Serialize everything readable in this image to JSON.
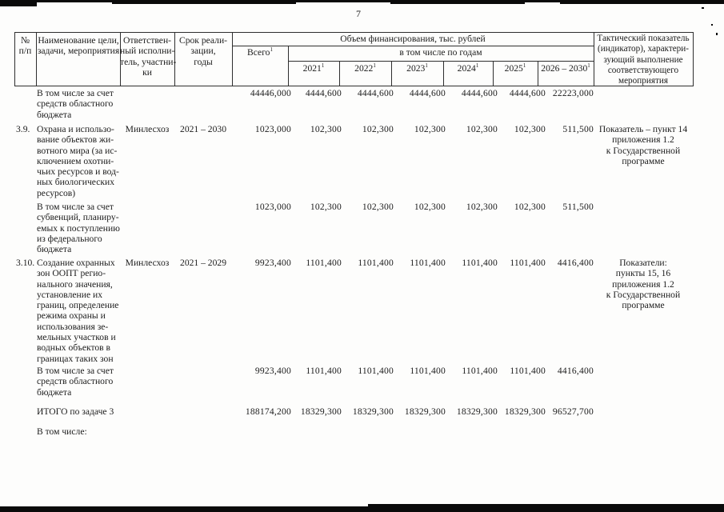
{
  "page_number": "7",
  "table": {
    "header": {
      "num": "№\nп/п",
      "name": "Наименование цели,\nзадачи, мероприятия",
      "executor": "Ответствен-\nный исполни-\nтель, участни-\nки",
      "term": "Срок реали-\nзации,\nгоды",
      "finance_title": "Объем финансирования, тыс. рублей",
      "total_label": "Всего",
      "footnote_mark": "1",
      "by_years_label": "в том числе по годам",
      "year_columns": [
        "2021",
        "2022",
        "2023",
        "2024",
        "2025",
        "2026 – 2030"
      ],
      "indicator": "Тактический показатель\n(индикатор), характери-\nзующий выполнение\nсоответствующего\nмероприятия"
    },
    "rows": [
      {
        "num": "",
        "name": "В том числе за счет\nсредств областного\nбюджета",
        "executor": "",
        "term": "",
        "values": [
          "44446,000",
          "4444,600",
          "4444,600",
          "4444,600",
          "4444,600",
          "4444,600",
          "22223,000"
        ],
        "indicator": ""
      },
      {
        "num": "3.9.",
        "name": "Охрана и использо-\nвание объектов жи-\nвотного мира (за ис-\nключением охотни-\nчьих ресурсов и вод-\nных биологических\nресурсов)",
        "executor": "Минлесхоз",
        "term": "2021 – 2030",
        "values": [
          "1023,000",
          "102,300",
          "102,300",
          "102,300",
          "102,300",
          "102,300",
          "511,500"
        ],
        "indicator": "Показатель – пункт 14\nприложения 1.2\nк Государственной\nпрограмме"
      },
      {
        "num": "",
        "name": "В том числе за счет\nсубвенций, планиру-\nемых к поступлению\nиз федерального\nбюджета",
        "executor": "",
        "term": "",
        "values": [
          "1023,000",
          "102,300",
          "102,300",
          "102,300",
          "102,300",
          "102,300",
          "511,500"
        ],
        "indicator": ""
      },
      {
        "num": "3.10.",
        "name": "Создание охранных\nзон ООПТ регио-\nнального значения,\nустановление их\nграниц, определение\nрежима охраны и\nиспользования зе-\nмельных участков и\nводных объектов в\nграницах таких зон",
        "executor": "Минлесхоз",
        "term": "2021 – 2029",
        "values": [
          "9923,400",
          "1101,400",
          "1101,400",
          "1101,400",
          "1101,400",
          "1101,400",
          "4416,400"
        ],
        "indicator": "Показатели:\nпункты 15, 16\nприложения 1.2\nк Государственной\nпрограмме"
      },
      {
        "num": "",
        "name": "В том числе за счет\nсредств областного\nбюджета",
        "executor": "",
        "term": "",
        "values": [
          "9923,400",
          "1101,400",
          "1101,400",
          "1101,400",
          "1101,400",
          "1101,400",
          "4416,400"
        ],
        "indicator": ""
      },
      {
        "num": "",
        "name": "ИТОГО по задаче 3",
        "executor": "",
        "term": "",
        "values": [
          "188174,200",
          "18329,300",
          "18329,300",
          "18329,300",
          "18329,300",
          "18329,300",
          "96527,700"
        ],
        "indicator": ""
      },
      {
        "num": "",
        "name": "В том числе:",
        "executor": "",
        "term": "",
        "values": [
          "",
          "",
          "",
          "",
          "",
          "",
          ""
        ],
        "indicator": ""
      }
    ]
  }
}
